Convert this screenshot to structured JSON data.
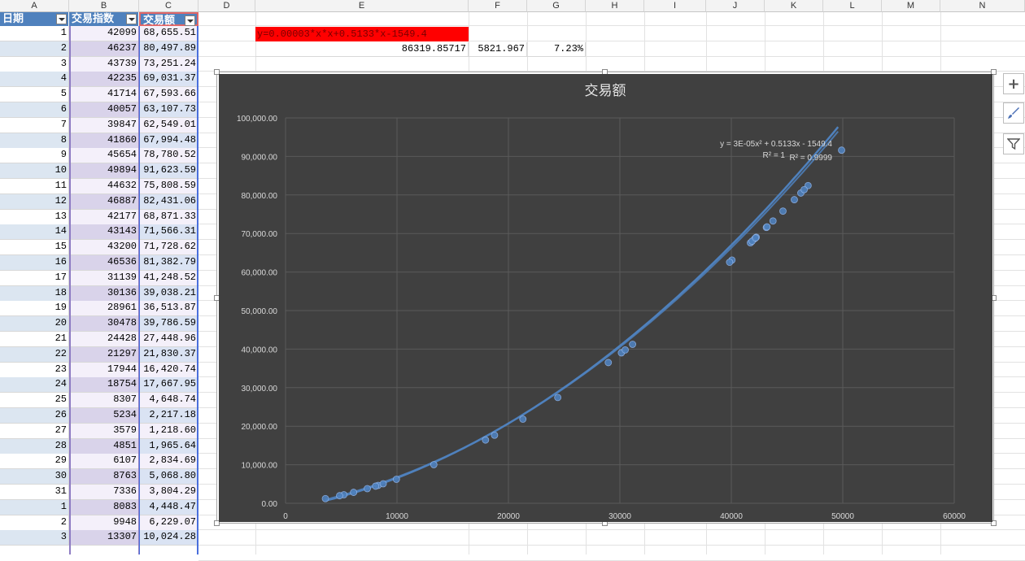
{
  "columns": [
    "A",
    "B",
    "C",
    "D",
    "E",
    "F",
    "G",
    "H",
    "I",
    "J",
    "K",
    "L",
    "M",
    "N"
  ],
  "table": {
    "headers": [
      "日期",
      "交易指数",
      "交易额"
    ],
    "rows": [
      [
        "1",
        "42099",
        "68,655.51"
      ],
      [
        "2",
        "46237",
        "80,497.89"
      ],
      [
        "3",
        "43739",
        "73,251.24"
      ],
      [
        "4",
        "42235",
        "69,031.37"
      ],
      [
        "5",
        "41714",
        "67,593.66"
      ],
      [
        "6",
        "40057",
        "63,107.73"
      ],
      [
        "7",
        "39847",
        "62,549.01"
      ],
      [
        "8",
        "41860",
        "67,994.48"
      ],
      [
        "9",
        "45654",
        "78,780.52"
      ],
      [
        "10",
        "49894",
        "91,623.59"
      ],
      [
        "11",
        "44632",
        "75,808.59"
      ],
      [
        "12",
        "46887",
        "82,431.06"
      ],
      [
        "13",
        "42177",
        "68,871.33"
      ],
      [
        "14",
        "43143",
        "71,566.31"
      ],
      [
        "15",
        "43200",
        "71,728.62"
      ],
      [
        "16",
        "46536",
        "81,382.79"
      ],
      [
        "17",
        "31139",
        "41,248.52"
      ],
      [
        "18",
        "30136",
        "39,038.21"
      ],
      [
        "19",
        "28961",
        "36,513.87"
      ],
      [
        "20",
        "30478",
        "39,786.59"
      ],
      [
        "21",
        "24428",
        "27,448.96"
      ],
      [
        "22",
        "21297",
        "21,830.37"
      ],
      [
        "23",
        "17944",
        "16,420.74"
      ],
      [
        "24",
        "18754",
        "17,667.95"
      ],
      [
        "25",
        "8307",
        "4,648.74"
      ],
      [
        "26",
        "5234",
        "2,217.18"
      ],
      [
        "27",
        "3579",
        "1,218.60"
      ],
      [
        "28",
        "4851",
        "1,965.64"
      ],
      [
        "29",
        "6107",
        "2,834.69"
      ],
      [
        "30",
        "8763",
        "5,068.80"
      ],
      [
        "31",
        "7336",
        "3,804.29"
      ],
      [
        "1",
        "8083",
        "4,448.47"
      ],
      [
        "2",
        "9948",
        "6,229.07"
      ],
      [
        "3",
        "13307",
        "10,024.28"
      ]
    ]
  },
  "formula_cell": "y=0.00003*x*x+0.5133*x-1549.4",
  "row3": {
    "e": "86319.85717",
    "f": "5821.967",
    "g": "7.23%"
  },
  "chart_data": {
    "type": "scatter",
    "title": "交易额",
    "xlim": [
      0,
      60000
    ],
    "ylim": [
      0,
      100000
    ],
    "x_ticks": [
      "0",
      "10000",
      "20000",
      "30000",
      "40000",
      "50000",
      "60000"
    ],
    "y_ticks": [
      "0.00",
      "10,000.00",
      "20,000.00",
      "30,000.00",
      "40,000.00",
      "50,000.00",
      "60,000.00",
      "70,000.00",
      "80,000.00",
      "90,000.00",
      "100,000.00"
    ],
    "grid": true,
    "series": [
      {
        "x": [
          42099,
          46237,
          43739,
          42235,
          41714,
          40057,
          39847,
          41860,
          45654,
          49894,
          44632,
          46887,
          42177,
          43143,
          43200,
          46536,
          31139,
          30136,
          28961,
          30478,
          24428,
          21297,
          17944,
          18754,
          8307,
          5234,
          3579,
          4851,
          6107,
          8763,
          7336,
          8083,
          9948,
          13307
        ],
        "y": [
          68655.51,
          80497.89,
          73251.24,
          69031.37,
          67593.66,
          63107.73,
          62549.01,
          67994.48,
          78780.52,
          91623.59,
          75808.59,
          82431.06,
          68871.33,
          71566.31,
          71728.62,
          81382.79,
          41248.52,
          39038.21,
          36513.87,
          39786.59,
          27448.96,
          21830.37,
          16420.74,
          17667.95,
          4648.74,
          2217.18,
          1218.6,
          1965.64,
          2834.69,
          5068.8,
          3804.29,
          4448.47,
          6229.07,
          10024.28
        ]
      }
    ],
    "trendline_equation": "y = 3E-05x² + 0.5133x - 1549.4",
    "r2_label_1": "R² = 1",
    "r2_label_2": "R² = 0.9999",
    "colors": {
      "background": "#404040",
      "series": "#4f81bd",
      "grid": "#5a5a5a",
      "text": "#d9d9d9"
    }
  },
  "side_buttons": [
    "plus-icon",
    "brush-icon",
    "filter-icon"
  ]
}
